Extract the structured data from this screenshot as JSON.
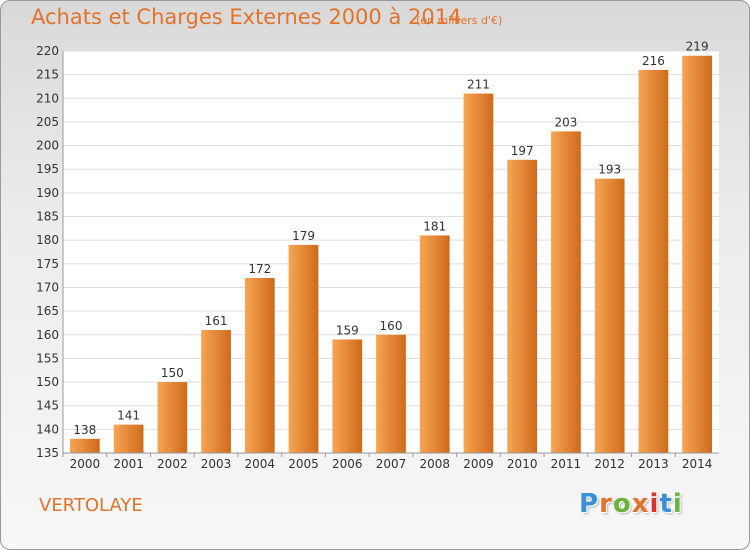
{
  "header": {
    "title": "Achats et Charges Externes 2000 à 2014",
    "unit": "(en milliers d'€)"
  },
  "footer": {
    "place": "VERTOLAYE",
    "logo": "Proxiti",
    "logo_colors": [
      "#3b8fd6",
      "#e2732a",
      "#6bb33d",
      "#e2732a",
      "#d93030",
      "#3b8fd6",
      "#6bb33d"
    ]
  },
  "chart_data": {
    "type": "bar",
    "title": "Achats et Charges Externes 2000 à 2014",
    "categories": [
      "2000",
      "2001",
      "2002",
      "2003",
      "2004",
      "2005",
      "2006",
      "2007",
      "2008",
      "2009",
      "2010",
      "2011",
      "2012",
      "2013",
      "2014"
    ],
    "values": [
      138,
      141,
      150,
      161,
      172,
      179,
      159,
      160,
      181,
      211,
      197,
      203,
      193,
      216,
      219
    ],
    "ylim": [
      135,
      220
    ],
    "yticks": [
      135,
      140,
      145,
      150,
      155,
      160,
      165,
      170,
      175,
      180,
      185,
      190,
      195,
      200,
      205,
      210,
      215,
      220
    ],
    "grid": true,
    "bar_color_light": "#f7a553",
    "bar_color_dark": "#cf6a1b"
  }
}
